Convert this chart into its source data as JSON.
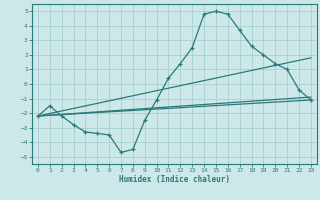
{
  "xlabel": "Humidex (Indice chaleur)",
  "xlim": [
    -0.5,
    23.5
  ],
  "ylim": [
    -5.5,
    5.5
  ],
  "xticks": [
    0,
    1,
    2,
    3,
    4,
    5,
    6,
    7,
    8,
    9,
    10,
    11,
    12,
    13,
    14,
    15,
    16,
    17,
    18,
    19,
    20,
    21,
    22,
    23
  ],
  "yticks": [
    -5,
    -4,
    -3,
    -2,
    -1,
    0,
    1,
    2,
    3,
    4,
    5
  ],
  "bg_color": "#cce8e8",
  "grid_color": "#aacfcf",
  "line_color": "#2a7a7a",
  "line1_x": [
    0,
    1,
    2,
    3,
    4,
    5,
    6,
    7,
    8,
    9,
    10,
    11,
    12,
    13,
    14,
    15,
    16,
    17,
    18,
    19,
    20,
    21,
    22,
    23
  ],
  "line1_y": [
    -2.2,
    -1.5,
    -2.2,
    -2.8,
    -3.3,
    -3.4,
    -3.5,
    -4.7,
    -4.5,
    -2.5,
    -1.1,
    0.4,
    1.4,
    2.5,
    4.8,
    5.0,
    4.8,
    3.7,
    2.6,
    2.0,
    1.4,
    1.0,
    -0.4,
    -1.1
  ],
  "line2_x": [
    0,
    23
  ],
  "line2_y": [
    -2.2,
    -1.1
  ],
  "line3_x": [
    0,
    23
  ],
  "line3_y": [
    -2.2,
    1.8
  ],
  "line4_x": [
    0,
    23
  ],
  "line4_y": [
    -2.2,
    -0.9
  ]
}
